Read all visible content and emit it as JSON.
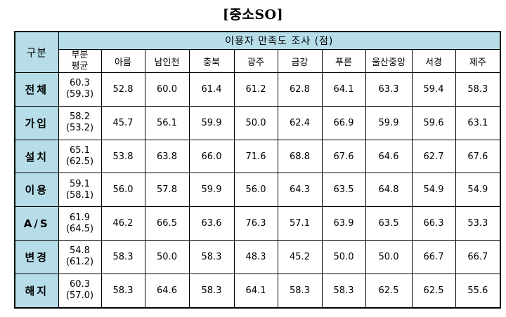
{
  "title": "[중소SO]",
  "table": {
    "row_header_label": "구분",
    "group_header": "이용자 만족도 조사 (점)",
    "avg_header": [
      "부분",
      "평균"
    ],
    "columns": [
      "아름",
      "남인천",
      "충북",
      "광주",
      "금강",
      "푸른",
      "울산중앙",
      "서경",
      "제주"
    ],
    "rows": [
      {
        "label": "전체",
        "avg": "60.3",
        "avg_prev": "(59.3)",
        "values": [
          "52.8",
          "60.0",
          "61.4",
          "61.2",
          "62.8",
          "64.1",
          "63.3",
          "59.4",
          "58.3"
        ]
      },
      {
        "label": "가입",
        "avg": "58.2",
        "avg_prev": "(53.2)",
        "values": [
          "45.7",
          "56.1",
          "59.9",
          "50.0",
          "62.4",
          "66.9",
          "59.9",
          "59.6",
          "63.1"
        ]
      },
      {
        "label": "설치",
        "avg": "65.1",
        "avg_prev": "(62.5)",
        "values": [
          "53.8",
          "63.8",
          "66.0",
          "71.6",
          "68.8",
          "67.6",
          "64.6",
          "62.7",
          "67.6"
        ]
      },
      {
        "label": "이용",
        "avg": "59.1",
        "avg_prev": "(58.1)",
        "values": [
          "56.0",
          "57.8",
          "59.9",
          "56.0",
          "64.3",
          "63.5",
          "64.8",
          "54.9",
          "54.9"
        ]
      },
      {
        "label": "A/S",
        "avg": "61.9",
        "avg_prev": "(64.5)",
        "values": [
          "46.2",
          "66.5",
          "63.6",
          "76.3",
          "57.1",
          "63.9",
          "63.5",
          "66.3",
          "53.3"
        ]
      },
      {
        "label": "변경",
        "avg": "54.8",
        "avg_prev": "(61.2)",
        "values": [
          "58.3",
          "50.0",
          "58.3",
          "48.3",
          "45.2",
          "50.0",
          "50.0",
          "66.7",
          "66.7"
        ]
      },
      {
        "label": "해지",
        "avg": "60.3",
        "avg_prev": "(57.0)",
        "values": [
          "58.3",
          "64.6",
          "58.3",
          "64.1",
          "58.3",
          "58.3",
          "62.5",
          "62.5",
          "55.6"
        ]
      }
    ]
  }
}
